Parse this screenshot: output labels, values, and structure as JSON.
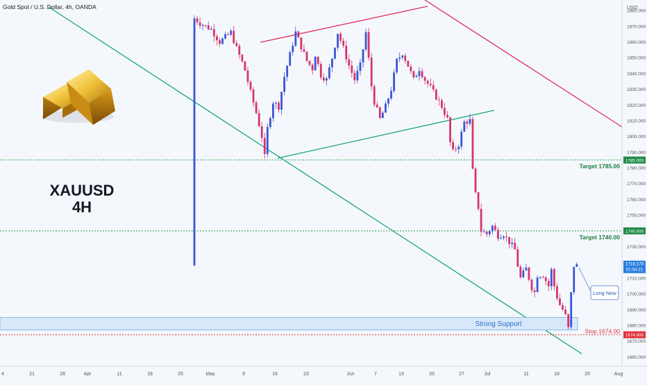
{
  "header": {
    "title": "Gold Spot / U.S. Dollar, 4h, OANDA",
    "currency": "USD"
  },
  "symbol": {
    "ticker": "XAUUSD",
    "timeframe": "4H"
  },
  "colors": {
    "up": "#3a55d6",
    "down": "#d6336c",
    "green_line": "#1aa37a",
    "red_line": "#e0305c",
    "target": "#1a7a3a",
    "stop": "#e0303a",
    "support": "#2a6fd0",
    "current": "#2a7fe0"
  },
  "chart_data": {
    "type": "candlestick",
    "y_ticks": [
      1660,
      1670,
      1680,
      1690,
      1700,
      1710,
      1720,
      1730,
      1740,
      1750,
      1760,
      1770,
      1780,
      1790,
      1800,
      1810,
      1820,
      1830,
      1840,
      1850,
      1860,
      1870,
      1880
    ],
    "y_tick_labels": [
      "1660.000",
      "1670.000",
      "1680.000",
      "1690.000",
      "1700.000",
      "1710.000",
      "1720.000",
      "1730.000",
      "1740.000",
      "1750.000",
      "1760.000",
      "1770.000",
      "1780.000",
      "1790.000",
      "1800.000",
      "1810.000",
      "1820.000",
      "1830.000",
      "1840.000",
      "1850.000",
      "1860.000",
      "1870.000",
      "1880.000"
    ],
    "x_tick_labels": [
      "4",
      "21",
      "28",
      "Apr",
      "11",
      "18",
      "25",
      "May",
      "9",
      "16",
      "23",
      "Jun",
      "7",
      "13",
      "20",
      "27",
      "Jul",
      "11",
      "18",
      "25",
      "Aug"
    ],
    "ylim": [
      1654,
      1884
    ],
    "target1": {
      "label": "Target 1785.00",
      "value": 1785,
      "badge": "1785.000"
    },
    "target2": {
      "label": "Target 1740.00",
      "value": 1740,
      "badge": "1740.000"
    },
    "stop": {
      "label": "Stop 1674.00",
      "value": 1674,
      "badge": "1674.000"
    },
    "current": {
      "value": 1718,
      "badge_price": "1718.170",
      "badge_time": "01:04:21"
    },
    "support": {
      "label": "Strong Support",
      "low": 1677,
      "high": 1685
    },
    "callout": "Long Now",
    "path": [
      [
        1,
        1875
      ],
      [
        3,
        1872
      ],
      [
        7,
        1868
      ],
      [
        10,
        1860
      ],
      [
        14,
        1866
      ],
      [
        16,
        1856
      ],
      [
        18,
        1847
      ],
      [
        19,
        1842
      ],
      [
        21,
        1828
      ],
      [
        23,
        1815
      ],
      [
        25,
        1800
      ],
      [
        26,
        1787
      ],
      [
        27,
        1805
      ],
      [
        29,
        1822
      ],
      [
        31,
        1819
      ],
      [
        33,
        1838
      ],
      [
        35,
        1852
      ],
      [
        37,
        1866
      ],
      [
        39,
        1857
      ],
      [
        41,
        1848
      ],
      [
        43,
        1843
      ],
      [
        44,
        1852
      ],
      [
        46,
        1839
      ],
      [
        48,
        1836
      ],
      [
        50,
        1850
      ],
      [
        52,
        1866
      ],
      [
        54,
        1856
      ],
      [
        56,
        1845
      ],
      [
        58,
        1836
      ],
      [
        60,
        1845
      ],
      [
        62,
        1866
      ],
      [
        63,
        1849
      ],
      [
        64,
        1832
      ],
      [
        65,
        1822
      ],
      [
        67,
        1811
      ],
      [
        69,
        1819
      ],
      [
        71,
        1830
      ],
      [
        73,
        1848
      ],
      [
        75,
        1853
      ],
      [
        77,
        1845
      ],
      [
        79,
        1836
      ],
      [
        81,
        1843
      ],
      [
        83,
        1836
      ],
      [
        85,
        1831
      ],
      [
        87,
        1825
      ],
      [
        89,
        1819
      ],
      [
        91,
        1811
      ],
      [
        92,
        1796
      ],
      [
        93,
        1790
      ],
      [
        95,
        1795
      ],
      [
        97,
        1809
      ],
      [
        99,
        1810
      ],
      [
        100,
        1778
      ],
      [
        101,
        1763
      ],
      [
        102,
        1755
      ],
      [
        103,
        1740
      ],
      [
        105,
        1738
      ],
      [
        107,
        1743
      ],
      [
        109,
        1737
      ],
      [
        111,
        1738
      ],
      [
        113,
        1733
      ],
      [
        115,
        1728
      ],
      [
        116,
        1718
      ],
      [
        117,
        1710
      ],
      [
        119,
        1716
      ],
      [
        121,
        1704
      ],
      [
        122,
        1701
      ],
      [
        123,
        1712
      ],
      [
        125,
        1712
      ],
      [
        127,
        1705
      ],
      [
        128,
        1715
      ],
      [
        129,
        1705
      ],
      [
        130,
        1698
      ],
      [
        131,
        1693
      ],
      [
        132,
        1690
      ],
      [
        133,
        1686
      ],
      [
        134,
        1678
      ],
      [
        135,
        1700
      ],
      [
        136,
        1718
      ]
    ]
  }
}
